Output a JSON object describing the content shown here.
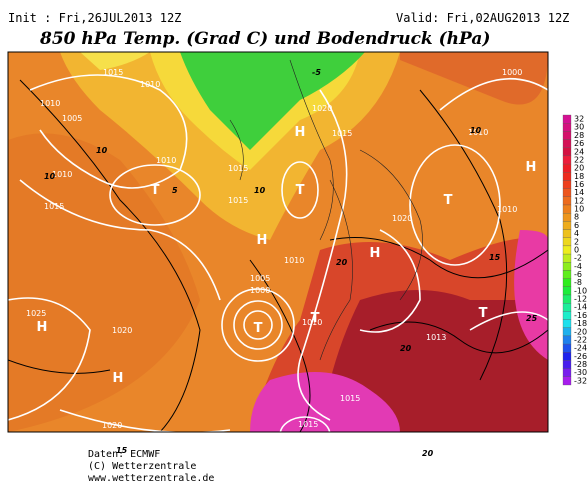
{
  "header": {
    "init": "Init : Fri,26JUL2013 12Z",
    "valid": "Valid: Fri,02AUG2013 12Z",
    "title": "850 hPa Temp. (Grad C) und Bodendruck (hPa)"
  },
  "legend": {
    "ticks": [
      32,
      30,
      28,
      26,
      24,
      22,
      20,
      18,
      16,
      14,
      12,
      10,
      8,
      6,
      4,
      2,
      0,
      -2,
      -4,
      -6,
      -8,
      -10,
      -12,
      -14,
      -16,
      -18,
      -20,
      -22,
      -24,
      -26,
      -28,
      -30,
      -32
    ]
  },
  "map": {
    "systems": [
      "H",
      "T",
      "T",
      "H",
      "T",
      "H",
      "H",
      "T",
      "H",
      "T",
      "T",
      "H",
      "T"
    ],
    "isobar_labels": [
      "1015",
      "1010",
      "1005",
      "1010",
      "1010",
      "1015",
      "1020",
      "1025",
      "1015",
      "1015",
      "1010",
      "1020",
      "1015",
      "1005",
      "1000",
      "1010",
      "1010",
      "1020",
      "1010",
      "1010",
      "1015",
      "1013",
      "1015",
      "1020",
      "1010",
      "1000"
    ],
    "temperature_labels": [
      "10",
      "10",
      "-5",
      "5",
      "10",
      "15",
      "20",
      "20",
      "25",
      "20",
      "15",
      "10"
    ]
  },
  "footer": {
    "line1": "Daten: ECMWF",
    "line2": "(C) Wetterzentrale",
    "line3": "www.wetterzentrale.de"
  }
}
